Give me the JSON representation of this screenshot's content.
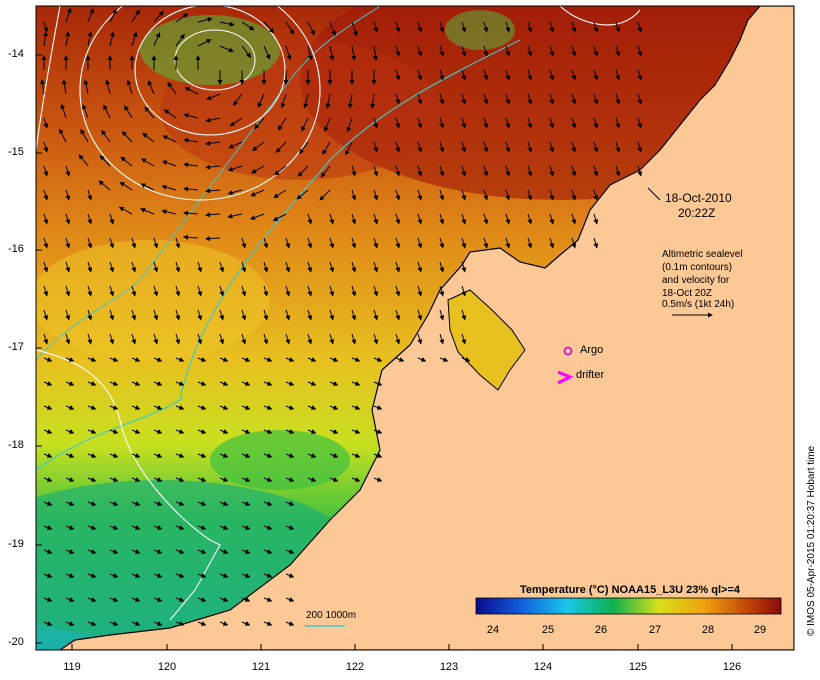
{
  "map": {
    "datetime": [
      "18-Oct-2010",
      "20:22Z"
    ],
    "legend_text": [
      "Altimetric sealevel",
      "(0.1m contours)",
      "and velocity for",
      "18-Oct 20Z",
      "0.5m/s (1kt 24h)"
    ],
    "markers": {
      "argo": "Argo",
      "drifter": "drifter"
    },
    "isobath_label": "200  1000m",
    "colorbar": {
      "title": "Temperature (°C) NOAA15_L3U 23% ql>=4",
      "ticks": [
        "24",
        "25",
        "26",
        "27",
        "28",
        "29"
      ]
    },
    "credit": "© IMOS 05-Apr-2015 01:20:37 Hobart time",
    "x_ticks": [
      "119",
      "120",
      "121",
      "122",
      "123",
      "124",
      "125",
      "126"
    ],
    "y_ticks": [
      "-14",
      "-15",
      "-16",
      "-17",
      "-18",
      "-19",
      "-20"
    ],
    "colors": {
      "land": "#fbc896",
      "argo": "#d020d0",
      "drifter": "#ff00ff",
      "isobath": "#40c8c8"
    }
  }
}
